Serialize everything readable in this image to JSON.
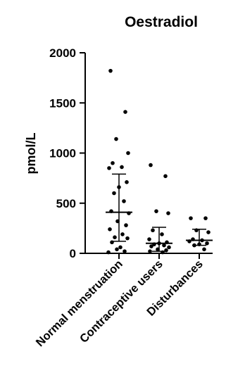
{
  "chart_data": {
    "type": "scatter",
    "title": "Oestradiol",
    "xlabel": "",
    "ylabel": "pmol/L",
    "ylim": [
      0,
      2000
    ],
    "yticks": [
      "0",
      "500",
      "1000",
      "1500",
      "2000"
    ],
    "categories": [
      "Normal menstruation",
      "Contraceptive users",
      "Disturbances"
    ],
    "groups": [
      {
        "category": "Normal menstruation",
        "values": [
          1820,
          1410,
          1140,
          1000,
          900,
          860,
          850,
          710,
          660,
          600,
          520,
          420,
          400,
          320,
          280,
          240,
          190,
          160,
          150,
          110,
          60,
          40,
          20,
          10
        ],
        "median": 410,
        "error": [
          120,
          790
        ]
      },
      {
        "category": "Contraceptive users",
        "values": [
          880,
          770,
          420,
          400,
          230,
          190,
          140,
          110,
          100,
          90,
          80,
          70,
          60,
          40,
          30,
          20,
          10
        ],
        "median": 100,
        "error": [
          20,
          260
        ]
      },
      {
        "category": "Disturbances",
        "values": [
          350,
          350,
          230,
          210,
          140,
          130,
          120,
          100,
          90,
          80,
          40
        ],
        "median": 130,
        "error": [
          80,
          240
        ]
      }
    ],
    "point_color": "#000000",
    "grid": false,
    "legend": "none"
  }
}
